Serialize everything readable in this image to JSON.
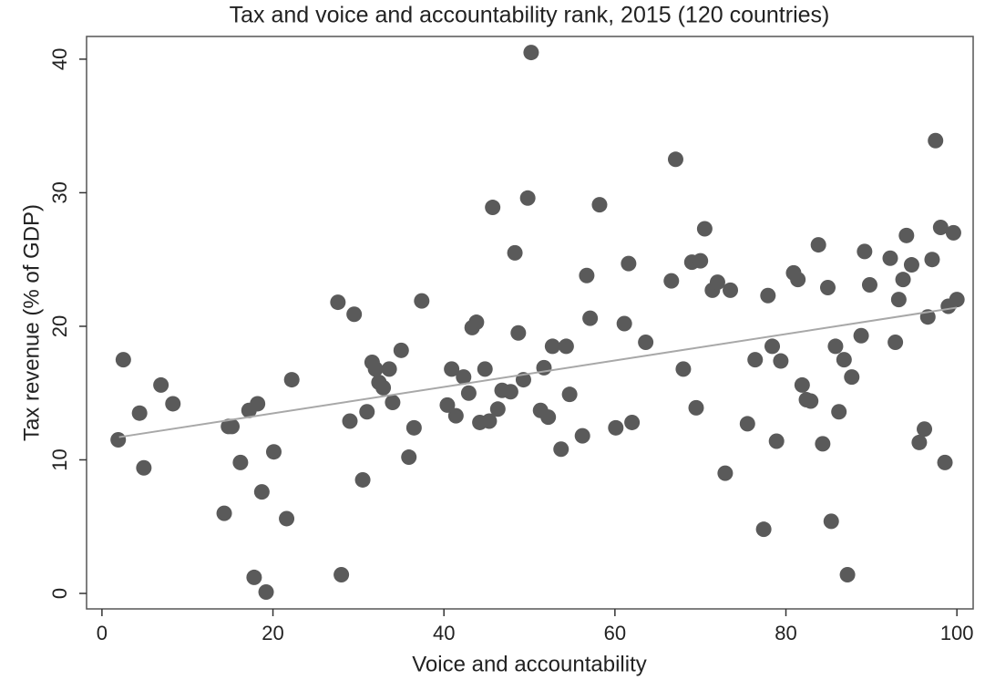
{
  "chart_data": {
    "type": "scatter",
    "title": "Tax and voice and accountability rank, 2015 (120 countries)",
    "x_label": "Voice and accountability",
    "y_label": "Tax revenue (% of GDP)",
    "xlim": [
      -1.8,
      101.9
    ],
    "ylim": [
      -1.16,
      41.7
    ],
    "xticks": [
      0,
      20,
      40,
      60,
      80,
      100
    ],
    "yticks": [
      0,
      10,
      20,
      30,
      40
    ],
    "grid": false,
    "series": [
      {
        "color": "#5a5a5a",
        "x": [
          1.9,
          2.5,
          4.4,
          4.9,
          6.9,
          8.3,
          14.3,
          14.8,
          15.2,
          16.2,
          17.2,
          17.8,
          18.2,
          18.7,
          19.2,
          20.1,
          21.6,
          22.2,
          27.6,
          28.0,
          29.0,
          29.5,
          30.5,
          31.0,
          31.6,
          32.0,
          32.4,
          32.9,
          33.6,
          34.0,
          35.0,
          35.9,
          36.5,
          37.4,
          40.4,
          40.9,
          41.4,
          42.3,
          42.9,
          43.3,
          43.8,
          44.2,
          44.8,
          45.3,
          45.7,
          46.3,
          46.8,
          47.8,
          48.3,
          48.7,
          49.3,
          49.8,
          50.2,
          51.3,
          51.7,
          52.2,
          52.7,
          53.7,
          54.3,
          54.7,
          56.2,
          56.7,
          57.1,
          58.2,
          60.1,
          61.1,
          61.6,
          62.0,
          63.6,
          66.6,
          67.1,
          68.0,
          69.0,
          69.5,
          70.0,
          70.5,
          71.4,
          72.0,
          72.9,
          73.5,
          75.5,
          76.4,
          77.4,
          77.9,
          78.4,
          78.9,
          79.4,
          80.9,
          81.4,
          81.9,
          82.4,
          82.9,
          83.8,
          84.3,
          84.9,
          85.3,
          85.8,
          86.2,
          86.8,
          87.2,
          87.7,
          88.8,
          89.2,
          89.8,
          92.2,
          92.8,
          93.2,
          93.7,
          94.1,
          94.7,
          95.6,
          96.2,
          96.6,
          97.1,
          97.5,
          98.1,
          98.6,
          99.0,
          99.6,
          100
        ],
        "values": [
          11.5,
          17.5,
          13.5,
          9.4,
          15.6,
          14.2,
          6.0,
          12.5,
          12.5,
          9.8,
          13.7,
          1.2,
          14.2,
          7.6,
          0.1,
          10.6,
          5.6,
          16.0,
          21.8,
          1.4,
          12.9,
          20.9,
          8.5,
          13.6,
          17.3,
          16.8,
          15.8,
          15.4,
          16.8,
          14.3,
          18.2,
          10.2,
          12.4,
          21.9,
          14.1,
          16.8,
          13.3,
          16.2,
          15.0,
          19.9,
          20.3,
          12.8,
          16.8,
          12.9,
          28.9,
          13.8,
          15.2,
          15.1,
          25.5,
          19.5,
          16.0,
          29.6,
          40.5,
          13.7,
          16.9,
          13.2,
          18.5,
          10.8,
          18.5,
          14.9,
          11.8,
          23.8,
          20.6,
          29.1,
          12.4,
          20.2,
          24.7,
          12.8,
          18.8,
          23.4,
          32.5,
          16.8,
          24.8,
          13.9,
          24.9,
          27.3,
          22.7,
          23.3,
          9.0,
          22.7,
          12.7,
          17.5,
          4.8,
          22.3,
          18.5,
          11.4,
          17.4,
          24.0,
          23.5,
          15.6,
          14.5,
          14.4,
          26.1,
          11.2,
          22.9,
          5.4,
          18.5,
          13.6,
          17.5,
          1.4,
          16.2,
          19.3,
          25.6,
          23.1,
          25.1,
          18.8,
          22.0,
          23.5,
          26.8,
          24.6,
          11.3,
          12.3,
          20.7,
          25.0,
          33.9,
          27.4,
          9.8,
          21.5,
          27.0,
          22.0
        ]
      },
      {
        "type": "line",
        "color": "#a8a8a8",
        "x": [
          2,
          100
        ],
        "values": [
          11.7,
          21.4
        ]
      }
    ]
  }
}
